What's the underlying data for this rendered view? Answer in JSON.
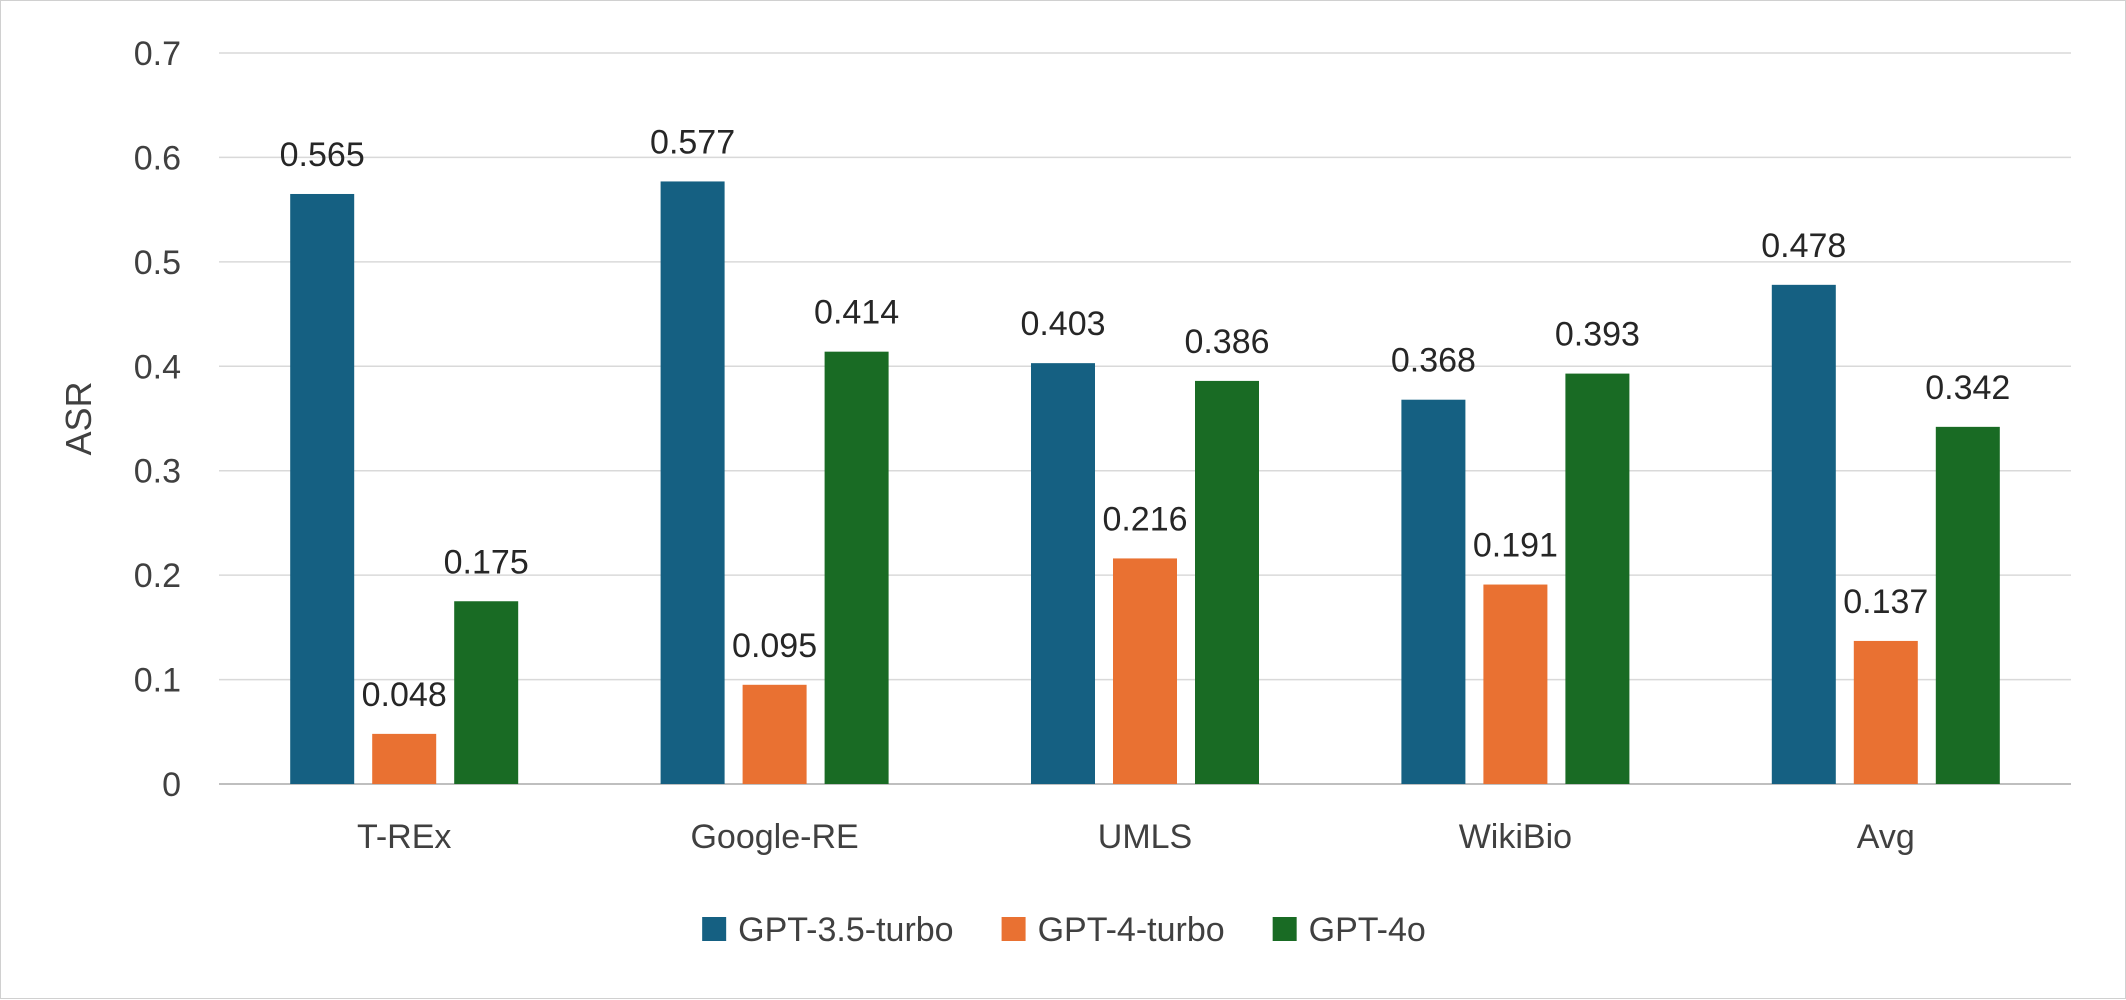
{
  "chart_data": {
    "type": "bar",
    "title": "",
    "xlabel": "",
    "ylabel": "ASR",
    "ylim": [
      0,
      0.7
    ],
    "yticks": [
      0,
      0.1,
      0.2,
      0.3,
      0.4,
      0.5,
      0.6,
      0.7
    ],
    "ytick_labels": [
      "0",
      "0.1",
      "0.2",
      "0.3",
      "0.4",
      "0.5",
      "0.6",
      "0.7"
    ],
    "grid": true,
    "legend_position": "bottom",
    "categories": [
      "T-REx",
      "Google-RE",
      "UMLS",
      "WikiBio",
      "Avg"
    ],
    "series": [
      {
        "name": "GPT-3.5-turbo",
        "color": "#156082",
        "values": [
          0.565,
          0.577,
          0.403,
          0.368,
          0.478
        ],
        "labels": [
          "0.565",
          "0.577",
          "0.403",
          "0.368",
          "0.478"
        ]
      },
      {
        "name": "GPT-4-turbo",
        "color": "#E97132",
        "values": [
          0.048,
          0.095,
          0.216,
          0.191,
          0.137
        ],
        "labels": [
          "0.048",
          "0.095",
          "0.216",
          "0.191",
          "0.137"
        ]
      },
      {
        "name": "GPT-4o",
        "color": "#196B24",
        "values": [
          0.175,
          0.414,
          0.386,
          0.393,
          0.342
        ],
        "labels": [
          "0.175",
          "0.414",
          "0.386",
          "0.393",
          "0.342"
        ]
      }
    ],
    "colors": {
      "gridline": "#d9d9d9",
      "axis": "#bfbfbf"
    }
  }
}
